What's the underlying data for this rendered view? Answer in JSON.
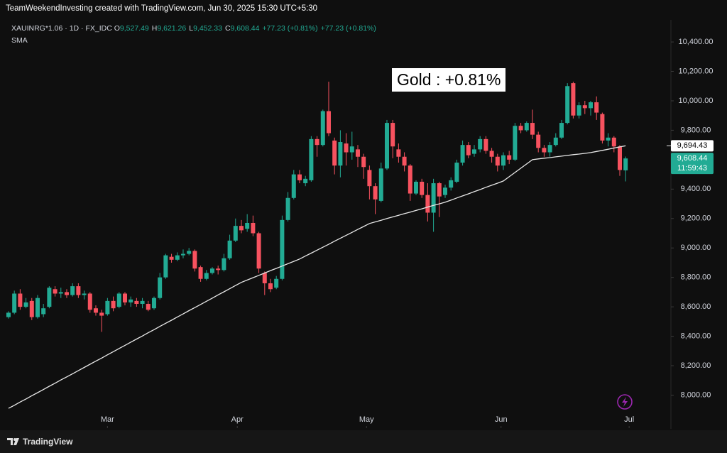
{
  "chart_data": {
    "type": "candlestick",
    "title": "TeamWeekendInvesting created with TradingView.com, Jun 30, 2025 15:30 UTC+5:30",
    "legend": {
      "symbol": "XAUINRG*1.06 · 1D · FX_IDC",
      "items": [
        {
          "key": "O",
          "value": "9,527.49"
        },
        {
          "key": "H",
          "value": "9,621.26"
        },
        {
          "key": "L",
          "value": "9,452.33"
        },
        {
          "key": "C",
          "value": "9,608.44"
        }
      ],
      "change": "+77.23 (+0.81%)",
      "change_repeat": "+77.23 (+0.81%)"
    },
    "annotation": "Gold : +0.81%",
    "footer": "TradingView",
    "sma_tag": "9,694.43",
    "last_price_tag": "9,608.44",
    "countdown": "11:59:43",
    "up_color": "#22ab94",
    "down_color": "#f7525f",
    "open": [
      8530,
      8560,
      8690,
      8600,
      8640,
      8530,
      8550,
      8600,
      8720,
      8690,
      8700,
      8680,
      8740,
      8680,
      8690,
      8590,
      8560,
      8550,
      8640,
      8600,
      8690,
      8630,
      8640,
      8620,
      8620,
      8590,
      8660,
      8800,
      8940,
      8920,
      8950,
      8960,
      8980,
      8870,
      8790,
      8830,
      8860,
      8850,
      8930,
      9050,
      9150,
      9130,
      9170,
      9100,
      8830,
      8760,
      8730,
      8790,
      9190,
      9340,
      9500,
      9440,
      9460,
      9740,
      9700,
      9930,
      9730,
      9560,
      9710,
      9650,
      9670,
      9620,
      9530,
      9420,
      9320,
      9540,
      9850,
      9670,
      9620,
      9560,
      9370,
      9450,
      9360,
      9240,
      9440,
      9360,
      9410,
      9450,
      9580,
      9700,
      9640,
      9670,
      9740,
      9660,
      9620,
      9560,
      9630,
      9600,
      9830,
      9800,
      9850,
      9770,
      9680,
      9650,
      9700,
      9750,
      9850,
      10120,
      9900,
      9970,
      9950,
      9990,
      9910,
      9730,
      9750,
      9690,
      9527.49
    ],
    "high": [
      8570,
      8710,
      8720,
      8660,
      8660,
      8680,
      8620,
      8740,
      8740,
      8730,
      8720,
      8760,
      8760,
      8710,
      8700,
      8610,
      8580,
      8660,
      8670,
      8700,
      8700,
      8670,
      8660,
      8660,
      8640,
      8670,
      8830,
      8960,
      8960,
      8970,
      8990,
      9000,
      8990,
      8880,
      8850,
      8870,
      8880,
      8960,
      9090,
      9200,
      9190,
      9230,
      9220,
      9110,
      8840,
      8790,
      8810,
      9220,
      9380,
      9530,
      9530,
      9490,
      9760,
      9760,
      9940,
      10130,
      9750,
      9800,
      9780,
      9790,
      9700,
      9640,
      9560,
      9440,
      9580,
      9870,
      9870,
      9710,
      9650,
      9570,
      9460,
      9470,
      9440,
      9470,
      9450,
      9430,
      9480,
      9600,
      9730,
      9720,
      9700,
      9760,
      9760,
      9680,
      9640,
      9650,
      9660,
      9850,
      9850,
      9860,
      9940,
      9790,
      9700,
      9720,
      9780,
      9870,
      10120,
      10130,
      9990,
      10000,
      10000,
      10030,
      9920,
      9780,
      9760,
      9700,
      9621.26
    ],
    "low": [
      8520,
      8550,
      8580,
      8590,
      8510,
      8520,
      8530,
      8590,
      8670,
      8660,
      8660,
      8670,
      8660,
      8650,
      8560,
      8540,
      8430,
      8540,
      8570,
      8590,
      8610,
      8600,
      8600,
      8590,
      8570,
      8580,
      8650,
      8790,
      8900,
      8910,
      8930,
      8950,
      8840,
      8770,
      8780,
      8820,
      8820,
      8840,
      8920,
      9040,
      9100,
      9110,
      9080,
      8830,
      8680,
      8700,
      8720,
      8780,
      9180,
      9330,
      9440,
      9420,
      9450,
      9620,
      9690,
      9760,
      9500,
      9480,
      9560,
      9600,
      9550,
      9470,
      9330,
      9230,
      9310,
      9530,
      9610,
      9580,
      9520,
      9320,
      9360,
      9340,
      9180,
      9110,
      9210,
      9340,
      9390,
      9440,
      9560,
      9610,
      9620,
      9650,
      9640,
      9580,
      9520,
      9530,
      9570,
      9590,
      9780,
      9790,
      9740,
      9650,
      9620,
      9620,
      9690,
      9740,
      9840,
      9880,
      9880,
      9910,
      9900,
      9870,
      9710,
      9690,
      9650,
      9490,
      9452.33
    ],
    "close": [
      8560,
      8690,
      8600,
      8630,
      8530,
      8660,
      8590,
      8730,
      8690,
      8700,
      8680,
      8740,
      8680,
      8690,
      8580,
      8560,
      8540,
      8640,
      8590,
      8690,
      8630,
      8650,
      8620,
      8640,
      8580,
      8660,
      8800,
      8950,
      8920,
      8950,
      8960,
      8980,
      8860,
      8790,
      8830,
      8860,
      8850,
      8930,
      9050,
      9150,
      9120,
      9170,
      9100,
      8860,
      8760,
      8720,
      8790,
      9190,
      9340,
      9500,
      9460,
      9470,
      9740,
      9700,
      9930,
      9780,
      9560,
      9720,
      9650,
      9690,
      9620,
      9550,
      9420,
      9330,
      9540,
      9850,
      9690,
      9620,
      9560,
      9370,
      9450,
      9360,
      9240,
      9440,
      9350,
      9410,
      9460,
      9580,
      9700,
      9630,
      9670,
      9740,
      9660,
      9620,
      9560,
      9630,
      9600,
      9830,
      9800,
      9850,
      9770,
      9680,
      9650,
      9700,
      9750,
      9850,
      10100,
      9900,
      9970,
      9950,
      9990,
      9920,
      9730,
      9750,
      9690,
      9530,
      9608.44
    ],
    "sma": {
      "name": "SMA",
      "color": "#e8e8e8",
      "values": [
        7910,
        7931,
        7953,
        7974,
        7996,
        8017,
        8038,
        8060,
        8081,
        8103,
        8124,
        8145,
        8167,
        8188,
        8210,
        8231,
        8252,
        8274,
        8295,
        8317,
        8338,
        8360,
        8381,
        8402,
        8424,
        8445,
        8467,
        8488,
        8509,
        8531,
        8552,
        8574,
        8595,
        8616,
        8638,
        8659,
        8681,
        8702,
        8723,
        8745,
        8766,
        8782,
        8798,
        8814,
        8830,
        8846,
        8861,
        8877,
        8893,
        8909,
        8925,
        8945,
        8965,
        8985,
        9005,
        9025,
        9046,
        9066,
        9086,
        9106,
        9126,
        9146,
        9166,
        9177,
        9188,
        9200,
        9211,
        9222,
        9233,
        9244,
        9255,
        9266,
        9278,
        9289,
        9300,
        9311,
        9325,
        9340,
        9354,
        9368,
        9383,
        9397,
        9412,
        9426,
        9440,
        9455,
        9484,
        9513,
        9542,
        9571,
        9600,
        9605,
        9610,
        9614,
        9619,
        9624,
        9629,
        9634,
        9638,
        9643,
        9648,
        9656,
        9663,
        9671,
        9679,
        9687,
        9694.43
      ]
    },
    "xlim": [
      -1.46,
      113.78
    ],
    "xticks": [
      {
        "value": 17,
        "label": "Mar"
      },
      {
        "value": 39.3,
        "label": "Apr"
      },
      {
        "value": 61.5,
        "label": "May"
      },
      {
        "value": 84.6,
        "label": "Jun"
      },
      {
        "value": 106.6,
        "label": "Jul"
      }
    ],
    "ylim": [
      7790,
      10550
    ],
    "yticks": [
      {
        "value": 8000,
        "label": "8,000.00"
      },
      {
        "value": 8200,
        "label": "8,200.00"
      },
      {
        "value": 8400,
        "label": "8,400.00"
      },
      {
        "value": 8600,
        "label": "8,600.00"
      },
      {
        "value": 8800,
        "label": "8,800.00"
      },
      {
        "value": 9000,
        "label": "9,000.00"
      },
      {
        "value": 9200,
        "label": "9,200.00"
      },
      {
        "value": 9400,
        "label": "9,400.00"
      },
      {
        "value": 9600,
        "label": "9,600.00"
      },
      {
        "value": 9800,
        "label": "9,800.00"
      },
      {
        "value": 10000,
        "label": "10,000.00"
      },
      {
        "value": 10200,
        "label": "10,200.00"
      },
      {
        "value": 10400,
        "label": "10,400.00"
      }
    ],
    "grid": false
  }
}
